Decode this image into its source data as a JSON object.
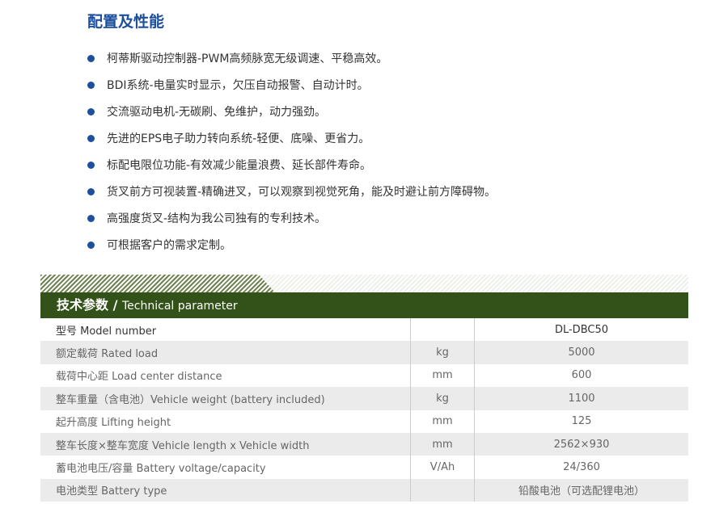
{
  "section_title": "配置及性能",
  "features": [
    "柯蒂斯驱动控制器-PWM高频脉宽无级调速、平稳高效。",
    "BDI系统-电量实时显示，欠压自动报警、自动计时。",
    "交流驱动电机-无碳刷、免维护，动力强劲。",
    "先进的EPS电子助力转向系统-轻便、底噪、更省力。",
    "标配电限位功能-有效减少能量浪费、延长部件寿命。",
    "货叉前方可视装置-精确进叉，可以观察到视觉死角，能及时避让前方障碍物。",
    "高强度货叉-结构为我公司独有的专利技术。",
    "可根据客户的需求定制。"
  ],
  "spec": {
    "title_cn": "技术参数 / ",
    "title_en": "Technical parameter",
    "rows": [
      {
        "name": "型号  Model number",
        "unit": "",
        "value": "DL-DBC50"
      },
      {
        "name": "额定载荷  Rated load",
        "unit": "kg",
        "value": "5000"
      },
      {
        "name": "载荷中心距  Load center distance",
        "unit": "mm",
        "value": "600"
      },
      {
        "name": "整车重量（含电池）Vehicle weight (battery included)",
        "unit": "kg",
        "value": "1100"
      },
      {
        "name": "起升高度  Lifting height",
        "unit": "mm",
        "value": "125"
      },
      {
        "name": "整车长度×整车宽度  Vehicle length x Vehicle width",
        "unit": "mm",
        "value": "2562×930"
      },
      {
        "name": "蓄电池电压/容量  Battery voltage/capacity",
        "unit": "V/Ah",
        "value": "24/360"
      },
      {
        "name": "电池类型  Battery type",
        "unit": "",
        "value": "铅酸电池（可选配锂电池）"
      }
    ]
  },
  "colors": {
    "accent": "#1d4f9c",
    "header": "#335219"
  }
}
